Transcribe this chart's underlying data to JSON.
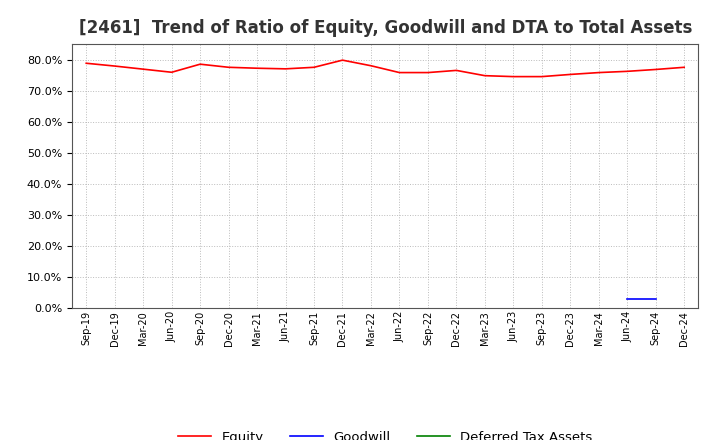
{
  "title": "[2461]  Trend of Ratio of Equity, Goodwill and DTA to Total Assets",
  "x_labels": [
    "Sep-19",
    "Dec-19",
    "Mar-20",
    "Jun-20",
    "Sep-20",
    "Dec-20",
    "Mar-21",
    "Jun-21",
    "Sep-21",
    "Dec-21",
    "Mar-22",
    "Jun-22",
    "Sep-22",
    "Dec-22",
    "Mar-23",
    "Jun-23",
    "Sep-23",
    "Dec-23",
    "Mar-24",
    "Jun-24",
    "Sep-24",
    "Dec-24"
  ],
  "equity": [
    78.8,
    77.9,
    76.9,
    75.9,
    78.5,
    77.5,
    77.2,
    77.0,
    77.5,
    79.8,
    78.0,
    75.8,
    75.8,
    76.5,
    74.8,
    74.5,
    74.5,
    75.2,
    75.8,
    76.2,
    76.8,
    77.5
  ],
  "goodwill": [
    null,
    null,
    null,
    null,
    null,
    null,
    null,
    null,
    null,
    null,
    null,
    null,
    null,
    null,
    null,
    null,
    null,
    null,
    null,
    3.0,
    3.0,
    null
  ],
  "deferred_tax": [
    null,
    null,
    null,
    null,
    null,
    null,
    null,
    null,
    null,
    null,
    null,
    null,
    null,
    null,
    null,
    null,
    null,
    null,
    null,
    null,
    null,
    null
  ],
  "equity_color": "#FF0000",
  "goodwill_color": "#0000FF",
  "dta_color": "#008000",
  "ylim": [
    0,
    85
  ],
  "yticks": [
    0,
    10,
    20,
    30,
    40,
    50,
    60,
    70,
    80
  ],
  "bg_color": "#FFFFFF",
  "plot_bg_color": "#FFFFFF",
  "grid_color": "#BBBBBB",
  "title_fontsize": 12,
  "legend_entries": [
    "Equity",
    "Goodwill",
    "Deferred Tax Assets"
  ]
}
